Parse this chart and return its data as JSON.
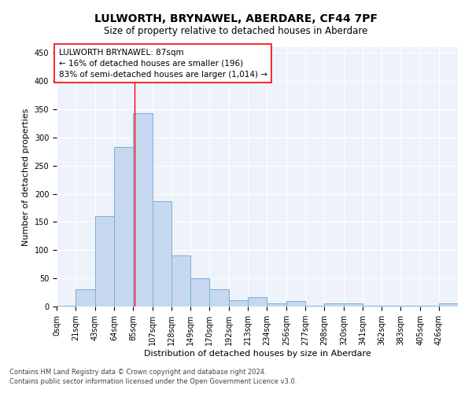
{
  "title": "LULWORTH, BRYNAWEL, ABERDARE, CF44 7PF",
  "subtitle": "Size of property relative to detached houses in Aberdare",
  "xlabel": "Distribution of detached houses by size in Aberdare",
  "ylabel": "Number of detached properties",
  "footnote1": "Contains HM Land Registry data © Crown copyright and database right 2024.",
  "footnote2": "Contains public sector information licensed under the Open Government Licence v3.0.",
  "annotation_line1": "LULWORTH BRYNAWEL: 87sqm",
  "annotation_line2": "← 16% of detached houses are smaller (196)",
  "annotation_line3": "83% of semi-detached houses are larger (1,014) →",
  "bar_color": "#c5d8f0",
  "bar_edge_color": "#7bafd4",
  "red_line_x": 87,
  "xlim": [
    0,
    447
  ],
  "ylim": [
    0,
    460
  ],
  "yticks": [
    0,
    50,
    100,
    150,
    200,
    250,
    300,
    350,
    400,
    450
  ],
  "bin_edges": [
    0,
    21,
    43,
    64,
    85,
    107,
    128,
    149,
    170,
    192,
    213,
    234,
    256,
    277,
    298,
    320,
    341,
    362,
    383,
    405,
    426,
    447
  ],
  "bar_heights": [
    2,
    30,
    160,
    283,
    343,
    187,
    90,
    50,
    30,
    11,
    17,
    6,
    10,
    2,
    5,
    5,
    1,
    1,
    1,
    1,
    5
  ],
  "tick_labels": [
    "0sqm",
    "21sqm",
    "43sqm",
    "64sqm",
    "85sqm",
    "107sqm",
    "128sqm",
    "149sqm",
    "170sqm",
    "192sqm",
    "213sqm",
    "234sqm",
    "256sqm",
    "277sqm",
    "298sqm",
    "320sqm",
    "341sqm",
    "362sqm",
    "383sqm",
    "405sqm",
    "426sqm"
  ],
  "background_color": "#eef2fb",
  "grid_color": "#ffffff",
  "title_fontsize": 10,
  "subtitle_fontsize": 8.5,
  "axis_label_fontsize": 8,
  "tick_fontsize": 7,
  "annotation_fontsize": 7.5,
  "footnote_fontsize": 6
}
